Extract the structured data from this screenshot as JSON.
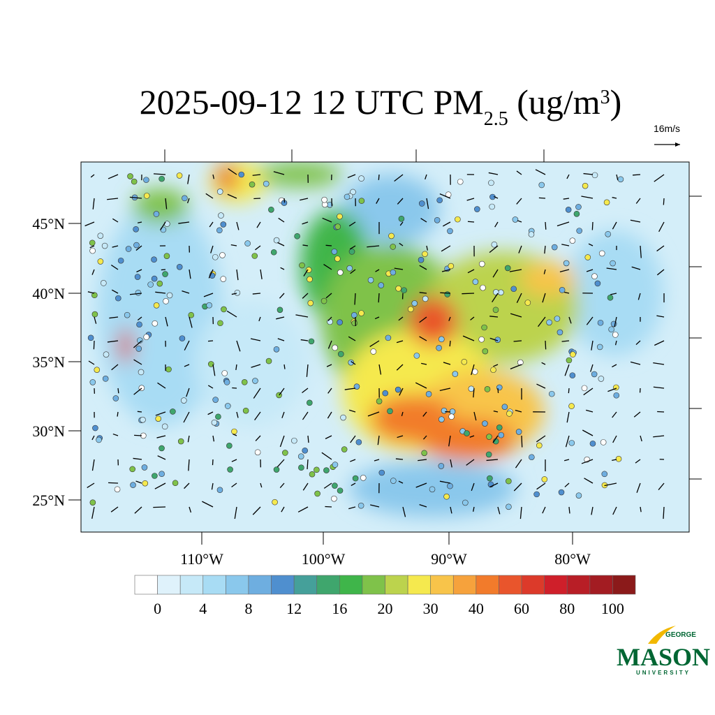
{
  "title": {
    "parts": [
      "2025-09-12 12 UTC PM",
      "2.5",
      " (ug/m",
      "3",
      ")"
    ]
  },
  "vector_reference": "16m/s",
  "map": {
    "lat_labels": [
      "45°N",
      "40°N",
      "35°N",
      "30°N",
      "25°N"
    ],
    "lon_labels": [
      "110°W",
      "100°W",
      "90°W",
      "80°W"
    ]
  },
  "colorbar": {
    "colors": [
      "#ffffff",
      "#dff2fb",
      "#c6e9f8",
      "#a8dcf4",
      "#8ac8ec",
      "#6eaee0",
      "#4f8fcf",
      "#45a09a",
      "#3fa66d",
      "#3fb54a",
      "#7fc24a",
      "#bcd34d",
      "#f5e94e",
      "#f8c44a",
      "#f6a23c",
      "#f27b2b",
      "#e9552c",
      "#dc3a2a",
      "#cf1f2a",
      "#b81e26",
      "#a31c22",
      "#8b1a1a"
    ],
    "labels": [
      0,
      4,
      8,
      12,
      16,
      20,
      30,
      40,
      60,
      80,
      100
    ]
  },
  "logo": {
    "top": "GEORGE",
    "main": "MASON",
    "bottom": "UNIVERSITY"
  }
}
